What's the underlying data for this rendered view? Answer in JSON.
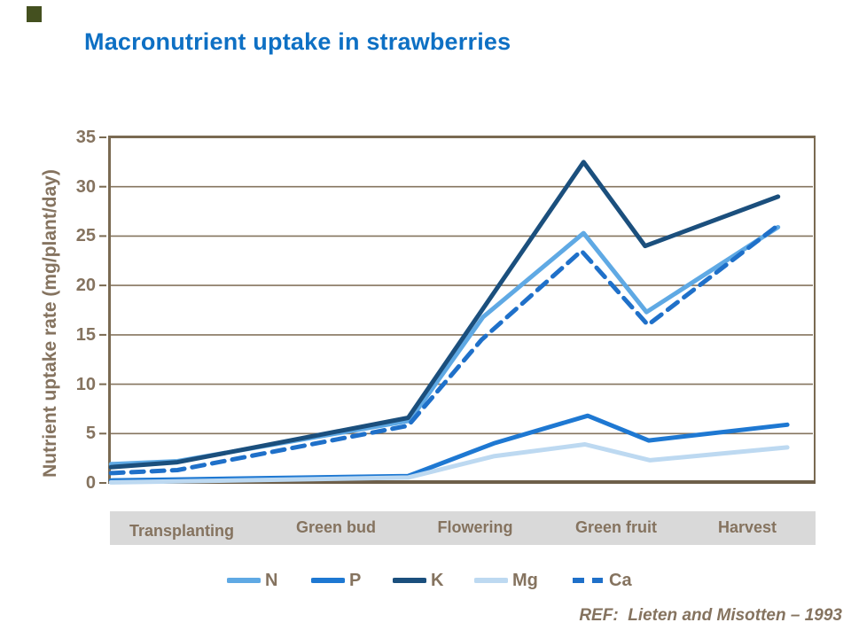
{
  "slide": {
    "title": "Macronutrient uptake in strawberries",
    "reference": "REF:  Lieten and Misotten – 1993"
  },
  "colors": {
    "title": "#0e70c4",
    "brown_text": "#85735f",
    "axis": "#7a6a52",
    "axis_bottom": "#6e5f4a",
    "grid": "#85755f",
    "band_bg": "#d9d9d9",
    "corner_mark": "#44501f",
    "series": {
      "N": "#5fa9e4",
      "P": "#1e78d2",
      "K": "#1b4f7d",
      "Mg": "#bdd9f1",
      "Ca": "#1f70c9"
    }
  },
  "chart_data": {
    "type": "line",
    "title": "Macronutrient uptake in strawberries",
    "xlabel": "",
    "ylabel": "Nutrient uptake rate (mg/plant/day)",
    "ylim": [
      0,
      35
    ],
    "yticks": [
      0,
      5,
      10,
      15,
      20,
      25,
      30,
      35
    ],
    "grid": true,
    "legend_position": "bottom",
    "categories": [
      "Transplanting",
      "Green bud",
      "Flowering",
      "Green fruit",
      "Harvest"
    ],
    "series": [
      {
        "name": "N",
        "dash": false,
        "values_by_stage": [
          2,
          4.5,
          25.5,
          17.5,
          26
        ],
        "points": [
          {
            "x": 0.004,
            "v": 1.9
          },
          {
            "x": 0.098,
            "v": 2.2
          },
          {
            "x": 0.426,
            "v": 6.3
          },
          {
            "x": 0.53,
            "v": 16.8
          },
          {
            "x": 0.672,
            "v": 25.3
          },
          {
            "x": 0.761,
            "v": 17.3
          },
          {
            "x": 0.947,
            "v": 25.9
          }
        ]
      },
      {
        "name": "P",
        "dash": false,
        "values_by_stage": [
          0.3,
          0.6,
          7,
          4.5,
          6
        ],
        "points": [
          {
            "x": 0.004,
            "v": 0.25
          },
          {
            "x": 0.098,
            "v": 0.35
          },
          {
            "x": 0.424,
            "v": 0.7
          },
          {
            "x": 0.545,
            "v": 4.0
          },
          {
            "x": 0.678,
            "v": 6.8
          },
          {
            "x": 0.764,
            "v": 4.3
          },
          {
            "x": 0.96,
            "v": 5.9
          }
        ]
      },
      {
        "name": "K",
        "dash": false,
        "values_by_stage": [
          1.7,
          5,
          32.5,
          24,
          29
        ],
        "points": [
          {
            "x": 0.004,
            "v": 1.6
          },
          {
            "x": 0.098,
            "v": 2.1
          },
          {
            "x": 0.424,
            "v": 6.6
          },
          {
            "x": 0.672,
            "v": 32.5
          },
          {
            "x": 0.759,
            "v": 24.0
          },
          {
            "x": 0.947,
            "v": 29.0
          }
        ]
      },
      {
        "name": "Mg",
        "dash": false,
        "values_by_stage": [
          0.1,
          0.5,
          4,
          2.5,
          3.5
        ],
        "points": [
          {
            "x": 0.004,
            "v": 0.05
          },
          {
            "x": 0.098,
            "v": 0.15
          },
          {
            "x": 0.424,
            "v": 0.55
          },
          {
            "x": 0.545,
            "v": 2.7
          },
          {
            "x": 0.674,
            "v": 3.9
          },
          {
            "x": 0.766,
            "v": 2.3
          },
          {
            "x": 0.96,
            "v": 3.6
          }
        ]
      },
      {
        "name": "Ca",
        "dash": true,
        "values_by_stage": [
          1,
          4,
          23.5,
          16,
          26
        ],
        "points": [
          {
            "x": 0.004,
            "v": 1.0
          },
          {
            "x": 0.098,
            "v": 1.3
          },
          {
            "x": 0.424,
            "v": 5.8
          },
          {
            "x": 0.528,
            "v": 14.5
          },
          {
            "x": 0.669,
            "v": 23.5
          },
          {
            "x": 0.763,
            "v": 16.0
          },
          {
            "x": 0.947,
            "v": 26.1
          }
        ]
      }
    ]
  }
}
